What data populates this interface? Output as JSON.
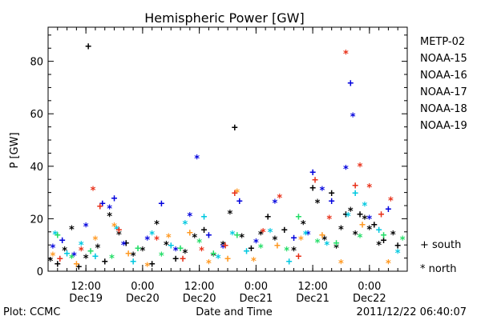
{
  "footer": {
    "plot_credit": "Plot: CCMC",
    "timestamp": "2011/12/22 06:40:07"
  },
  "chart_data": {
    "type": "scatter",
    "title": "Hemispheric Power [GW]",
    "xlabel": "Date and Time",
    "ylabel": "P [GW]",
    "xlim": [
      "2011-12-19 04:00",
      "2011-12-22 08:00"
    ],
    "ylim": [
      0,
      93
    ],
    "y_ticks": [
      0,
      20,
      40,
      60,
      80
    ],
    "x_ticks": [
      {
        "time": "2011-12-19 12:00",
        "line1": "12:00",
        "line2": "Dec19"
      },
      {
        "time": "2011-12-20 00:00",
        "line1": "0:00",
        "line2": "Dec20"
      },
      {
        "time": "2011-12-20 12:00",
        "line1": "12:00",
        "line2": "Dec20"
      },
      {
        "time": "2011-12-21 00:00",
        "line1": "0:00",
        "line2": "Dec21"
      },
      {
        "time": "2011-12-21 12:00",
        "line1": "12:00",
        "line2": "Dec21"
      },
      {
        "time": "2011-12-22 00:00",
        "line1": "0:00",
        "line2": "Dec22"
      }
    ],
    "grid": false,
    "legend_position": "right",
    "marker_legend": [
      {
        "symbol": "+",
        "label": "south"
      },
      {
        "symbol": "*",
        "label": "north"
      }
    ],
    "series": [
      {
        "name": "METP-02",
        "color": "#000000",
        "points": [
          {
            "x": "2011-12-19 04:30",
            "y": 4,
            "m": "*"
          },
          {
            "x": "2011-12-19 06:00",
            "y": 3,
            "m": "+"
          },
          {
            "x": "2011-12-19 07:30",
            "y": 8,
            "m": "*"
          },
          {
            "x": "2011-12-19 09:00",
            "y": 16,
            "m": "*"
          },
          {
            "x": "2011-12-19 10:30",
            "y": 2,
            "m": "+"
          },
          {
            "x": "2011-12-19 12:00",
            "y": 5,
            "m": "*"
          },
          {
            "x": "2011-12-19 12:30",
            "y": 86,
            "m": "+"
          },
          {
            "x": "2011-12-19 14:30",
            "y": 9,
            "m": "*"
          },
          {
            "x": "2011-12-19 16:00",
            "y": 4,
            "m": "+"
          },
          {
            "x": "2011-12-19 17:00",
            "y": 21,
            "m": "*"
          },
          {
            "x": "2011-12-19 19:00",
            "y": 14,
            "m": "*"
          },
          {
            "x": "2011-12-19 20:30",
            "y": 11,
            "m": "+"
          },
          {
            "x": "2011-12-19 22:00",
            "y": 6,
            "m": "*"
          },
          {
            "x": "2011-12-20 00:00",
            "y": 8,
            "m": "*"
          },
          {
            "x": "2011-12-20 02:00",
            "y": 3,
            "m": "+"
          },
          {
            "x": "2011-12-20 03:00",
            "y": 18,
            "m": "*"
          },
          {
            "x": "2011-12-20 05:00",
            "y": 10,
            "m": "*"
          },
          {
            "x": "2011-12-20 07:00",
            "y": 5,
            "m": "+"
          },
          {
            "x": "2011-12-20 09:00",
            "y": 7,
            "m": "*"
          },
          {
            "x": "2011-12-20 11:00",
            "y": 13,
            "m": "*"
          },
          {
            "x": "2011-12-20 13:00",
            "y": 16,
            "m": "+"
          },
          {
            "x": "2011-12-20 15:00",
            "y": 6,
            "m": "*"
          },
          {
            "x": "2011-12-20 17:00",
            "y": 10,
            "m": "*"
          },
          {
            "x": "2011-12-20 18:30",
            "y": 22,
            "m": "*"
          },
          {
            "x": "2011-12-20 19:30",
            "y": 55,
            "m": "+"
          },
          {
            "x": "2011-12-20 21:00",
            "y": 13,
            "m": "*"
          },
          {
            "x": "2011-12-20 23:00",
            "y": 9,
            "m": "+"
          },
          {
            "x": "2011-12-21 01:00",
            "y": 14,
            "m": "*"
          },
          {
            "x": "2011-12-21 02:30",
            "y": 21,
            "m": "+"
          },
          {
            "x": "2011-12-21 04:00",
            "y": 12,
            "m": "*"
          },
          {
            "x": "2011-12-21 06:00",
            "y": 16,
            "m": "+"
          },
          {
            "x": "2011-12-21 08:00",
            "y": 8,
            "m": "*"
          },
          {
            "x": "2011-12-21 10:00",
            "y": 18,
            "m": "*"
          },
          {
            "x": "2011-12-21 12:00",
            "y": 32,
            "m": "+"
          },
          {
            "x": "2011-12-21 13:00",
            "y": 26,
            "m": "*"
          },
          {
            "x": "2011-12-21 14:30",
            "y": 12,
            "m": "*"
          },
          {
            "x": "2011-12-21 16:00",
            "y": 30,
            "m": "+"
          },
          {
            "x": "2011-12-21 17:00",
            "y": 9,
            "m": "*"
          },
          {
            "x": "2011-12-21 18:00",
            "y": 16,
            "m": "*"
          },
          {
            "x": "2011-12-21 19:00",
            "y": 22,
            "m": "+"
          },
          {
            "x": "2011-12-21 20:00",
            "y": 23,
            "m": "*"
          },
          {
            "x": "2011-12-21 21:00",
            "y": 14,
            "m": "*"
          },
          {
            "x": "2011-12-21 22:00",
            "y": 22,
            "m": "+"
          },
          {
            "x": "2011-12-21 23:00",
            "y": 20,
            "m": "*"
          },
          {
            "x": "2011-12-22 00:00",
            "y": 16,
            "m": "*"
          },
          {
            "x": "2011-12-22 01:00",
            "y": 18,
            "m": "+"
          },
          {
            "x": "2011-12-22 02:00",
            "y": 10,
            "m": "*"
          },
          {
            "x": "2011-12-22 03:00",
            "y": 12,
            "m": "+"
          },
          {
            "x": "2011-12-22 05:00",
            "y": 14,
            "m": "*"
          },
          {
            "x": "2011-12-22 06:00",
            "y": 10,
            "m": "+"
          }
        ]
      },
      {
        "name": "NOAA-15",
        "color": "#0000dd",
        "points": [
          {
            "x": "2011-12-19 05:00",
            "y": 9,
            "m": "*"
          },
          {
            "x": "2011-12-19 07:00",
            "y": 12,
            "m": "+"
          },
          {
            "x": "2011-12-19 09:30",
            "y": 6,
            "m": "*"
          },
          {
            "x": "2011-12-19 12:00",
            "y": 17,
            "m": "*"
          },
          {
            "x": "2011-12-19 15:30",
            "y": 26,
            "m": "+"
          },
          {
            "x": "2011-12-19 17:00",
            "y": 24,
            "m": "*"
          },
          {
            "x": "2011-12-19 18:00",
            "y": 28,
            "m": "+"
          },
          {
            "x": "2011-12-19 20:00",
            "y": 10,
            "m": "*"
          },
          {
            "x": "2011-12-20 01:00",
            "y": 12,
            "m": "*"
          },
          {
            "x": "2011-12-20 04:00",
            "y": 26,
            "m": "+"
          },
          {
            "x": "2011-12-20 07:00",
            "y": 8,
            "m": "*"
          },
          {
            "x": "2011-12-20 10:00",
            "y": 21,
            "m": "*"
          },
          {
            "x": "2011-12-20 11:30",
            "y": 43,
            "m": "*"
          },
          {
            "x": "2011-12-20 14:00",
            "y": 14,
            "m": "+"
          },
          {
            "x": "2011-12-20 17:00",
            "y": 9,
            "m": "*"
          },
          {
            "x": "2011-12-20 20:30",
            "y": 27,
            "m": "+"
          },
          {
            "x": "2011-12-21 00:00",
            "y": 11,
            "m": "*"
          },
          {
            "x": "2011-12-21 04:00",
            "y": 26,
            "m": "*"
          },
          {
            "x": "2011-12-21 08:00",
            "y": 13,
            "m": "+"
          },
          {
            "x": "2011-12-21 11:00",
            "y": 14,
            "m": "*"
          },
          {
            "x": "2011-12-21 12:00",
            "y": 38,
            "m": "+"
          },
          {
            "x": "2011-12-21 14:00",
            "y": 31,
            "m": "*"
          },
          {
            "x": "2011-12-21 16:00",
            "y": 27,
            "m": "+"
          },
          {
            "x": "2011-12-21 19:00",
            "y": 39,
            "m": "*"
          },
          {
            "x": "2011-12-21 20:00",
            "y": 72,
            "m": "+"
          },
          {
            "x": "2011-12-21 20:30",
            "y": 59,
            "m": "*"
          },
          {
            "x": "2011-12-22 00:00",
            "y": 20,
            "m": "*"
          },
          {
            "x": "2011-12-22 04:00",
            "y": 24,
            "m": "+"
          }
        ]
      },
      {
        "name": "NOAA-16",
        "color": "#00c8e0",
        "points": [
          {
            "x": "2011-12-19 05:30",
            "y": 14,
            "m": "*"
          },
          {
            "x": "2011-12-19 08:00",
            "y": 7,
            "m": "+"
          },
          {
            "x": "2011-12-19 11:00",
            "y": 10,
            "m": "*"
          },
          {
            "x": "2011-12-19 14:00",
            "y": 6,
            "m": "+"
          },
          {
            "x": "2011-12-19 18:30",
            "y": 16,
            "m": "*"
          },
          {
            "x": "2011-12-19 22:00",
            "y": 4,
            "m": "+"
          },
          {
            "x": "2011-12-20 02:00",
            "y": 14,
            "m": "*"
          },
          {
            "x": "2011-12-20 06:00",
            "y": 10,
            "m": "+"
          },
          {
            "x": "2011-12-20 09:00",
            "y": 18,
            "m": "*"
          },
          {
            "x": "2011-12-20 13:00",
            "y": 21,
            "m": "+"
          },
          {
            "x": "2011-12-20 16:00",
            "y": 5,
            "m": "*"
          },
          {
            "x": "2011-12-20 19:00",
            "y": 14,
            "m": "*"
          },
          {
            "x": "2011-12-20 22:00",
            "y": 8,
            "m": "+"
          },
          {
            "x": "2011-12-21 03:00",
            "y": 15,
            "m": "*"
          },
          {
            "x": "2011-12-21 07:00",
            "y": 4,
            "m": "+"
          },
          {
            "x": "2011-12-21 10:30",
            "y": 14,
            "m": "*"
          },
          {
            "x": "2011-12-21 15:00",
            "y": 10,
            "m": "*"
          },
          {
            "x": "2011-12-21 19:30",
            "y": 21,
            "m": "*"
          },
          {
            "x": "2011-12-21 21:00",
            "y": 30,
            "m": "+"
          },
          {
            "x": "2011-12-21 23:00",
            "y": 25,
            "m": "*"
          },
          {
            "x": "2011-12-22 02:00",
            "y": 16,
            "m": "+"
          },
          {
            "x": "2011-12-22 06:00",
            "y": 7,
            "m": "*"
          }
        ]
      },
      {
        "name": "NOAA-17",
        "color": "#22dd66",
        "points": [
          {
            "x": "2011-12-19 06:00",
            "y": 14,
            "m": "+"
          },
          {
            "x": "2011-12-19 09:00",
            "y": 5,
            "m": "*"
          },
          {
            "x": "2011-12-19 13:00",
            "y": 8,
            "m": "+"
          },
          {
            "x": "2011-12-19 17:30",
            "y": 5,
            "m": "*"
          },
          {
            "x": "2011-12-19 23:00",
            "y": 9,
            "m": "+"
          },
          {
            "x": "2011-12-20 04:00",
            "y": 6,
            "m": "*"
          },
          {
            "x": "2011-12-20 08:00",
            "y": 9,
            "m": "+"
          },
          {
            "x": "2011-12-20 12:00",
            "y": 11,
            "m": "*"
          },
          {
            "x": "2011-12-20 15:00",
            "y": 7,
            "m": "+"
          },
          {
            "x": "2011-12-20 20:00",
            "y": 14,
            "m": "+"
          },
          {
            "x": "2011-12-21 01:00",
            "y": 9,
            "m": "*"
          },
          {
            "x": "2011-12-21 06:30",
            "y": 8,
            "m": "*"
          },
          {
            "x": "2011-12-21 09:00",
            "y": 21,
            "m": "+"
          },
          {
            "x": "2011-12-21 13:00",
            "y": 11,
            "m": "*"
          },
          {
            "x": "2011-12-21 17:00",
            "y": 11,
            "m": "+"
          },
          {
            "x": "2011-12-21 22:00",
            "y": 13,
            "m": "*"
          },
          {
            "x": "2011-12-22 03:00",
            "y": 14,
            "m": "+"
          },
          {
            "x": "2011-12-22 07:00",
            "y": 12,
            "m": "*"
          }
        ]
      },
      {
        "name": "NOAA-18",
        "color": "#ff9922",
        "points": [
          {
            "x": "2011-12-19 05:00",
            "y": 6,
            "m": "*"
          },
          {
            "x": "2011-12-19 10:00",
            "y": 3,
            "m": "+"
          },
          {
            "x": "2011-12-19 14:00",
            "y": 12,
            "m": "*"
          },
          {
            "x": "2011-12-19 18:00",
            "y": 17,
            "m": "*"
          },
          {
            "x": "2011-12-19 21:00",
            "y": 7,
            "m": "+"
          },
          {
            "x": "2011-12-20 01:00",
            "y": 2,
            "m": "*"
          },
          {
            "x": "2011-12-20 05:30",
            "y": 13,
            "m": "*"
          },
          {
            "x": "2011-12-20 10:00",
            "y": 15,
            "m": "+"
          },
          {
            "x": "2011-12-20 14:00",
            "y": 3,
            "m": "*"
          },
          {
            "x": "2011-12-20 18:00",
            "y": 5,
            "m": "+"
          },
          {
            "x": "2011-12-20 20:00",
            "y": 30,
            "m": "*"
          },
          {
            "x": "2011-12-20 23:30",
            "y": 4,
            "m": "*"
          },
          {
            "x": "2011-12-21 04:30",
            "y": 10,
            "m": "+"
          },
          {
            "x": "2011-12-21 09:30",
            "y": 12,
            "m": "*"
          },
          {
            "x": "2011-12-21 14:00",
            "y": 14,
            "m": "+"
          },
          {
            "x": "2011-12-21 18:00",
            "y": 3,
            "m": "*"
          },
          {
            "x": "2011-12-21 22:30",
            "y": 18,
            "m": "+"
          },
          {
            "x": "2011-12-22 04:00",
            "y": 3,
            "m": "*"
          }
        ]
      },
      {
        "name": "NOAA-19",
        "color": "#e83018",
        "points": [
          {
            "x": "2011-12-19 06:30",
            "y": 5,
            "m": "+"
          },
          {
            "x": "2011-12-19 11:00",
            "y": 8,
            "m": "*"
          },
          {
            "x": "2011-12-19 13:30",
            "y": 31,
            "m": "*"
          },
          {
            "x": "2011-12-19 15:00",
            "y": 25,
            "m": "+"
          },
          {
            "x": "2011-12-19 19:00",
            "y": 16,
            "m": "+"
          },
          {
            "x": "2011-12-20 03:00",
            "y": 12,
            "m": "*"
          },
          {
            "x": "2011-12-20 08:30",
            "y": 5,
            "m": "+"
          },
          {
            "x": "2011-12-20 12:30",
            "y": 8,
            "m": "*"
          },
          {
            "x": "2011-12-20 17:30",
            "y": 10,
            "m": "+"
          },
          {
            "x": "2011-12-20 19:30",
            "y": 30,
            "m": "+"
          },
          {
            "x": "2011-12-21 01:30",
            "y": 15,
            "m": "*"
          },
          {
            "x": "2011-12-21 05:00",
            "y": 28,
            "m": "*"
          },
          {
            "x": "2011-12-21 09:00",
            "y": 6,
            "m": "+"
          },
          {
            "x": "2011-12-21 12:30",
            "y": 35,
            "m": "+"
          },
          {
            "x": "2011-12-21 15:30",
            "y": 20,
            "m": "*"
          },
          {
            "x": "2011-12-21 19:00",
            "y": 83,
            "m": "*"
          },
          {
            "x": "2011-12-21 21:00",
            "y": 33,
            "m": "+"
          },
          {
            "x": "2011-12-21 22:00",
            "y": 40,
            "m": "*"
          },
          {
            "x": "2011-12-22 00:00",
            "y": 32,
            "m": "*"
          },
          {
            "x": "2011-12-22 02:30",
            "y": 22,
            "m": "+"
          },
          {
            "x": "2011-12-22 04:30",
            "y": 27,
            "m": "*"
          }
        ]
      }
    ]
  }
}
